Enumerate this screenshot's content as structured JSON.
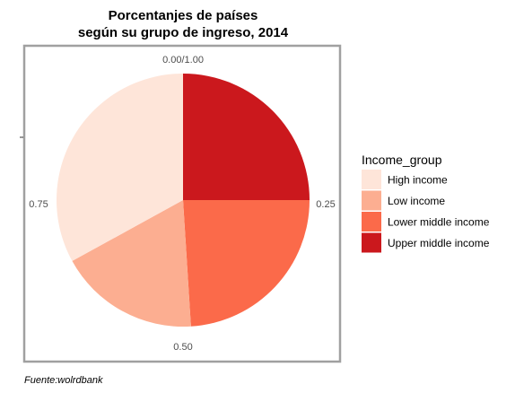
{
  "chart_data": {
    "type": "pie",
    "title": "Porcentanjes de países",
    "subtitle": "según su grupo de ingreso, 2014",
    "legend_title": "Income_group",
    "legend_position": "right",
    "caption": "Fuente:wolrdbank",
    "tick_labels": [
      "0.00/1.00",
      "0.25",
      "0.50",
      "0.75"
    ],
    "categories": [
      "Upper middle income",
      "Lower middle income",
      "Low income",
      "High income"
    ],
    "values": [
      0.25,
      0.24,
      0.18,
      0.33
    ],
    "colors": {
      "High income": "#fee5d9",
      "Low income": "#fcae91",
      "Lower middle income": "#fb6a4a",
      "Upper middle income": "#cb181d"
    },
    "legend_order": [
      "High income",
      "Low income",
      "Lower middle income",
      "Upper middle income"
    ],
    "grid": false
  }
}
